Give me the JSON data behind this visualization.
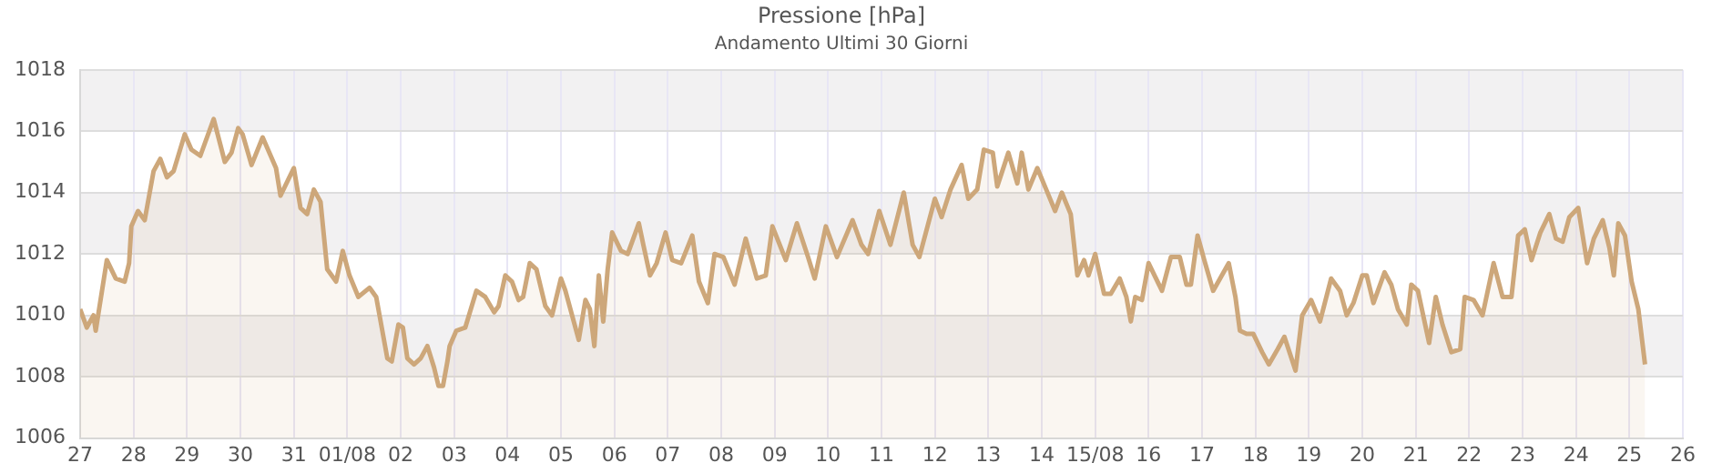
{
  "chart_data": {
    "type": "area",
    "title": "Pressione [hPa]",
    "subtitle": "Andamento Ultimi 30 Giorni",
    "x": [
      "--07-27T00:00",
      "--07-27T03:00",
      "--07-27T06:00",
      "--07-27T07:00",
      "--07-27T12:00",
      "--07-27T16:00",
      "--07-27T20:00",
      "--07-27T22:00",
      "--07-27T23:00",
      "--07-28T02:00",
      "--07-28T05:00",
      "--07-28T09:00",
      "--07-28T12:00",
      "--07-28T15:00",
      "--07-28T18:00",
      "--07-28T23:00",
      "--07-29T02:00",
      "--07-29T06:00",
      "--07-29T12:00",
      "--07-29T17:00",
      "--07-29T20:00",
      "--07-29T23:00",
      "--07-30T01:00",
      "--07-30T05:00",
      "--07-30T10:00",
      "--07-30T16:00",
      "--07-30T18:00",
      "--07-31T00:00",
      "--07-31T03:00",
      "--07-31T06:00",
      "--07-31T09:00",
      "--07-31T12:00",
      "--07-31T15:00",
      "--07-31T19:00",
      "--07-31T22:00",
      "--08-01T01:00",
      "--08-01T05:00",
      "--08-01T10:00",
      "--08-01T13:00",
      "--08-01T18:00",
      "--08-01T20:00",
      "--08-01T23:00",
      "--08-02T01:00",
      "--08-02T03:00",
      "--08-02T06:00",
      "--08-02T09:00",
      "--08-02T12:00",
      "--08-02T15:00",
      "--08-02T17:00",
      "--08-02T19:00",
      "--08-02T21:00",
      "--08-02T22:00",
      "--08-03T01:00",
      "--08-03T05:00",
      "--08-03T10:00",
      "--08-03T14:00",
      "--08-03T18:00",
      "--08-03T20:00",
      "--08-03T23:00",
      "--08-04T02:00",
      "--08-04T05:00",
      "--08-04T07:00",
      "--08-04T10:00",
      "--08-04T13:00",
      "--08-04T17:00",
      "--08-04T20:00",
      "--08-05T00:00",
      "--08-05T02:00",
      "--08-05T08:00",
      "--08-05T11:00",
      "--08-05T13:00",
      "--08-05T15:00",
      "--08-05T17:00",
      "--08-05T19:00",
      "--08-05T21:00",
      "--08-05T23:00",
      "--08-06T03:00",
      "--08-06T06:00",
      "--08-06T11:00",
      "--08-06T13:00",
      "--08-06T16:00",
      "--08-06T19:00",
      "--08-06T23:00",
      "--08-07T02:00",
      "--08-07T06:00",
      "--08-07T11:00",
      "--08-07T14:00",
      "--08-07T18:00",
      "--08-07T21:00",
      "--08-08T01:00",
      "--08-08T06:00",
      "--08-08T11:00",
      "--08-08T16:00",
      "--08-08T20:00",
      "--08-08T23:00",
      "--08-09T05:00",
      "--08-09T10:00",
      "--08-09T15:00",
      "--08-09T18:00",
      "--08-09T23:00",
      "--08-10T04:00",
      "--08-10T11:00",
      "--08-10T15:00",
      "--08-10T18:00",
      "--08-10T23:00",
      "--08-11T04:00",
      "--08-11T10:00",
      "--08-11T14:00",
      "--08-11T17:00",
      "--08-12T00:00",
      "--08-12T03:00",
      "--08-12T07:00",
      "--08-12T12:00",
      "--08-12T15:00",
      "--08-12T19:00",
      "--08-12T22:00",
      "--08-13T02:00",
      "--08-13T04:00",
      "--08-13T09:00",
      "--08-13T13:00",
      "--08-13T15:00",
      "--08-13T18:00",
      "--08-13T22:00",
      "--08-14T02:00",
      "--08-14T06:00",
      "--08-14T09:00",
      "--08-14T13:00",
      "--08-14T16:00",
      "--08-14T19:00",
      "--08-14T21:00",
      "--08-15T00:00",
      "--08-15T04:00",
      "--08-15T07:00",
      "--08-15T11:00",
      "--08-15T14:00",
      "--08-15T16:00",
      "--08-15T18:00",
      "--08-15T21:00",
      "--08-16T00:00",
      "--08-16T06:00",
      "--08-16T10:00",
      "--08-16T14:00",
      "--08-16T17:00",
      "--08-16T19:00",
      "--08-16T22:00",
      "--08-17T01:00",
      "--08-17T05:00",
      "--08-17T12:00",
      "--08-17T15:00",
      "--08-17T17:00",
      "--08-17T20:00",
      "--08-17T23:00",
      "--08-18T03:00",
      "--08-18T06:00",
      "--08-18T10:00",
      "--08-18T13:00",
      "--08-18T18:00",
      "--08-18T21:00",
      "--08-19T01:00",
      "--08-19T05:00",
      "--08-19T10:00",
      "--08-19T14:00",
      "--08-19T17:00",
      "--08-19T20:00",
      "--08-20T00:00",
      "--08-20T02:00",
      "--08-20T05:00",
      "--08-20T10:00",
      "--08-20T13:00",
      "--08-20T16:00",
      "--08-20T20:00",
      "--08-20T22:00",
      "--08-21T01:00",
      "--08-21T06:00",
      "--08-21T09:00",
      "--08-21T12:00",
      "--08-21T16:00",
      "--08-21T20:00",
      "--08-21T22:00",
      "--08-22T02:00",
      "--08-22T06:00",
      "--08-22T11:00",
      "--08-22T15:00",
      "--08-22T19:00",
      "--08-22T22:00",
      "--08-23T01:00",
      "--08-23T04:00",
      "--08-23T08:00",
      "--08-23T12:00",
      "--08-23T15:00",
      "--08-23T18:00",
      "--08-23T21:00",
      "--08-24T01:00",
      "--08-24T05:00",
      "--08-24T08:00",
      "--08-24T12:00",
      "--08-24T15:00",
      "--08-24T17:00",
      "--08-24T19:00",
      "--08-24T22:00",
      "--08-25T01:00",
      "--08-25T04:00",
      "--08-25T07:00"
    ],
    "series": [
      {
        "color": "#cda77a",
        "values": [
          1010.2,
          1009.6,
          1010.0,
          1009.5,
          1011.8,
          1011.2,
          1011.1,
          1011.7,
          1012.9,
          1013.4,
          1013.1,
          1014.7,
          1015.1,
          1014.5,
          1014.7,
          1015.9,
          1015.4,
          1015.2,
          1016.4,
          1015.0,
          1015.3,
          1016.1,
          1015.9,
          1014.9,
          1015.8,
          1014.8,
          1013.9,
          1014.8,
          1013.5,
          1013.3,
          1014.1,
          1013.7,
          1011.5,
          1011.1,
          1012.1,
          1011.3,
          1010.6,
          1010.9,
          1010.6,
          1008.6,
          1008.5,
          1009.7,
          1009.6,
          1008.6,
          1008.4,
          1008.6,
          1009.0,
          1008.3,
          1007.7,
          1007.7,
          1008.5,
          1009.0,
          1009.5,
          1009.6,
          1010.8,
          1010.6,
          1010.1,
          1010.3,
          1011.3,
          1011.1,
          1010.5,
          1010.6,
          1011.7,
          1011.5,
          1010.3,
          1010.0,
          1011.2,
          1010.8,
          1009.2,
          1010.5,
          1010.2,
          1009.0,
          1011.3,
          1009.8,
          1011.5,
          1012.7,
          1012.1,
          1012.0,
          1013.0,
          1012.3,
          1011.3,
          1011.7,
          1012.7,
          1011.8,
          1011.7,
          1012.6,
          1011.1,
          1010.4,
          1012.0,
          1011.9,
          1011.0,
          1012.5,
          1011.2,
          1011.3,
          1012.9,
          1011.8,
          1013.0,
          1011.9,
          1011.2,
          1012.9,
          1011.9,
          1013.1,
          1012.3,
          1012.0,
          1013.4,
          1012.3,
          1014.0,
          1012.3,
          1011.9,
          1013.8,
          1013.2,
          1014.1,
          1014.9,
          1013.8,
          1014.1,
          1015.4,
          1015.3,
          1014.2,
          1015.3,
          1014.3,
          1015.3,
          1014.1,
          1014.8,
          1014.1,
          1013.4,
          1014.0,
          1013.3,
          1011.3,
          1011.8,
          1011.3,
          1012.0,
          1010.7,
          1010.7,
          1011.2,
          1010.6,
          1009.8,
          1010.6,
          1010.5,
          1011.7,
          1010.8,
          1011.9,
          1011.9,
          1011.0,
          1011.0,
          1012.6,
          1011.8,
          1010.8,
          1011.7,
          1010.6,
          1009.5,
          1009.4,
          1009.4,
          1008.8,
          1008.4,
          1008.9,
          1009.3,
          1008.2,
          1010.0,
          1010.5,
          1009.8,
          1011.2,
          1010.8,
          1010.0,
          1010.4,
          1011.3,
          1011.3,
          1010.4,
          1011.4,
          1011.0,
          1010.2,
          1009.7,
          1011.0,
          1010.8,
          1009.1,
          1010.6,
          1009.7,
          1008.8,
          1008.9,
          1010.6,
          1010.5,
          1010.0,
          1011.7,
          1010.6,
          1010.6,
          1012.6,
          1012.8,
          1011.8,
          1012.7,
          1013.3,
          1012.5,
          1012.4,
          1013.2,
          1013.5,
          1011.7,
          1012.5,
          1013.1,
          1012.2,
          1011.3,
          1013.0,
          1012.6,
          1011.1,
          1010.2,
          1008.4
        ]
      }
    ],
    "xlim": [
      "--07-27",
      "--08-26"
    ],
    "xticks": [
      {
        "value": "--07-27",
        "label": "27"
      },
      {
        "value": "--07-28",
        "label": "28"
      },
      {
        "value": "--07-29",
        "label": "29"
      },
      {
        "value": "--07-30",
        "label": "30"
      },
      {
        "value": "--07-31",
        "label": "31"
      },
      {
        "value": "--08-01",
        "label": "01/08"
      },
      {
        "value": "--08-02",
        "label": "02"
      },
      {
        "value": "--08-03",
        "label": "03"
      },
      {
        "value": "--08-04",
        "label": "04"
      },
      {
        "value": "--08-05",
        "label": "05"
      },
      {
        "value": "--08-06",
        "label": "06"
      },
      {
        "value": "--08-07",
        "label": "07"
      },
      {
        "value": "--08-08",
        "label": "08"
      },
      {
        "value": "--08-09",
        "label": "09"
      },
      {
        "value": "--08-10",
        "label": "10"
      },
      {
        "value": "--08-11",
        "label": "11"
      },
      {
        "value": "--08-12",
        "label": "12"
      },
      {
        "value": "--08-13",
        "label": "13"
      },
      {
        "value": "--08-14",
        "label": "14"
      },
      {
        "value": "--08-15",
        "label": "15/08"
      },
      {
        "value": "--08-16",
        "label": "16"
      },
      {
        "value": "--08-17",
        "label": "17"
      },
      {
        "value": "--08-18",
        "label": "18"
      },
      {
        "value": "--08-19",
        "label": "19"
      },
      {
        "value": "--08-20",
        "label": "20"
      },
      {
        "value": "--08-21",
        "label": "21"
      },
      {
        "value": "--08-22",
        "label": "22"
      },
      {
        "value": "--08-23",
        "label": "23"
      },
      {
        "value": "--08-24",
        "label": "24"
      },
      {
        "value": "--08-25",
        "label": "25"
      },
      {
        "value": "--08-26",
        "label": "26"
      }
    ],
    "ylim": [
      1006,
      1018
    ],
    "yticks": [
      1006,
      1008,
      1010,
      1012,
      1014,
      1016,
      1018
    ],
    "bands": [
      {
        "axis": "y",
        "from": 1008,
        "to": 1010,
        "color": "#f2f1f2"
      },
      {
        "axis": "y",
        "from": 1012,
        "to": 1014,
        "color": "#f2f1f2"
      },
      {
        "axis": "y",
        "from": 1016,
        "to": 1018,
        "color": "#f2f1f2"
      }
    ],
    "grid": true,
    "marker": "none",
    "line_style": "solid",
    "legend": false
  }
}
